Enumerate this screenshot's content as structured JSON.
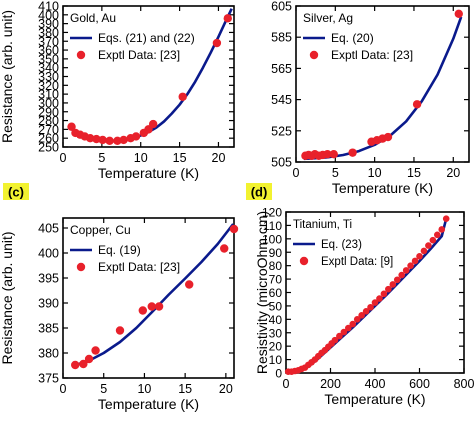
{
  "colors": {
    "curve": "#0a1a8c",
    "points": "#e8212b",
    "tag_bg": "#f2f230",
    "axis": "#000000"
  },
  "chart_data": [
    {
      "type": "scatter",
      "panel_tag": "",
      "title": "Gold, Au",
      "xlabel": "Temperature (K)",
      "ylabel": "Resistance (arb. unit)",
      "xlim": [
        0,
        22
      ],
      "ylim": [
        250,
        410
      ],
      "xticks": [
        0,
        5,
        10,
        15,
        20
      ],
      "yticks": [
        250,
        260,
        270,
        280,
        290,
        300,
        310,
        320,
        330,
        340,
        350,
        360,
        370,
        380,
        390,
        400,
        410
      ],
      "legend": [
        "Eqs. (21) and (22)",
        "Exptl Data: [23]"
      ],
      "legend_position": "top-left",
      "grid": false,
      "series": [
        {
          "name": "Eqs. (21) and (22)",
          "kind": "line",
          "x": [
            1.0,
            2.0,
            3.0,
            4.0,
            5.0,
            6.0,
            7.0,
            8.0,
            9.0,
            10.0,
            11.0,
            12.0,
            13.0,
            14.0,
            15.0,
            16.0,
            17.0,
            18.0,
            19.0,
            20.0,
            21.0,
            21.7
          ],
          "y": [
            271,
            265,
            261,
            259,
            257.5,
            257,
            257,
            258,
            260,
            263,
            267,
            272,
            279,
            288,
            298,
            310,
            324,
            340,
            357,
            375,
            394,
            407
          ]
        },
        {
          "name": "Exptl Data: [23]",
          "kind": "points",
          "x": [
            1.1,
            1.6,
            2.2,
            2.8,
            3.5,
            4.3,
            5.1,
            6.0,
            7.0,
            7.8,
            8.7,
            9.4,
            10.4,
            11.0,
            11.6,
            15.4,
            19.8,
            21.2
          ],
          "y": [
            273,
            266,
            264,
            262,
            260,
            259,
            258,
            257,
            257,
            258,
            260,
            262,
            266,
            270,
            276,
            307,
            368,
            396
          ]
        }
      ]
    },
    {
      "type": "scatter",
      "panel_tag": "",
      "title": "Silver, Ag",
      "xlabel": "Temperature (K)",
      "ylabel": "",
      "xlim": [
        0,
        22
      ],
      "ylim": [
        505,
        605
      ],
      "xticks": [
        0,
        5,
        10,
        15,
        20
      ],
      "yticks": [
        505,
        525,
        545,
        565,
        585,
        605
      ],
      "legend": [
        "Eq. (20)",
        "Exptl Data: [23]"
      ],
      "legend_position": "top-left",
      "grid": false,
      "series": [
        {
          "name": "Eq. (20)",
          "kind": "line",
          "x": [
            1.0,
            2.0,
            4.0,
            6.0,
            8.0,
            10.0,
            12.0,
            14.0,
            16.0,
            18.0,
            20.0,
            21.0
          ],
          "y": [
            507,
            507.3,
            508,
            509.5,
            512,
            516,
            522,
            531,
            544,
            561,
            584,
            598
          ]
        },
        {
          "name": "Exptl Data: [23]",
          "kind": "points",
          "x": [
            1.2,
            1.6,
            2.0,
            2.4,
            2.9,
            3.4,
            4.0,
            4.8,
            7.2,
            9.6,
            10.3,
            11.0,
            11.7,
            15.4,
            20.7
          ],
          "y": [
            509,
            509.5,
            509,
            510,
            509,
            509.5,
            510,
            510,
            511,
            518,
            519,
            520,
            521,
            542,
            600
          ]
        }
      ]
    },
    {
      "type": "scatter",
      "panel_tag": "(c)",
      "title": "Copper, Cu",
      "xlabel": "Temperature (K)",
      "ylabel": "Resistance (arb. unit)",
      "xlim": [
        0,
        21
      ],
      "ylim": [
        375,
        407
      ],
      "xticks": [
        0,
        5,
        10,
        15,
        20
      ],
      "yticks": [
        375,
        380,
        385,
        390,
        395,
        400,
        405
      ],
      "legend": [
        "Eq. (19)",
        "Exptl Data: [23]"
      ],
      "legend_position": "top-left",
      "grid": false,
      "series": [
        {
          "name": "Eq. (19)",
          "kind": "line",
          "x": [
            1.5,
            3.0,
            5.0,
            7.0,
            9.0,
            11.0,
            13.0,
            15.0,
            17.0,
            19.0,
            20.9
          ],
          "y": [
            377.6,
            378.3,
            380.0,
            382.2,
            385.0,
            388.3,
            391.7,
            394.9,
            398.2,
            401.8,
            405.8
          ]
        },
        {
          "name": "Exptl Data: [23]",
          "kind": "points",
          "x": [
            1.5,
            2.5,
            3.2,
            4.0,
            7.0,
            9.8,
            10.9,
            11.8,
            15.5,
            19.8,
            21.0
          ],
          "y": [
            377.6,
            377.8,
            378.8,
            380.5,
            384.5,
            388.5,
            389.3,
            389.3,
            393.7,
            400.9,
            404.8
          ]
        }
      ]
    },
    {
      "type": "scatter",
      "panel_tag": "(d)",
      "title": "Titanium, Ti",
      "xlabel": "Temperature (K)",
      "ylabel": "Resistivity (microOhm.cm)",
      "xlim": [
        0,
        800
      ],
      "ylim": [
        0,
        120
      ],
      "xticks": [
        0,
        200,
        400,
        600,
        800
      ],
      "yticks": [
        0,
        10,
        20,
        30,
        40,
        50,
        60,
        70,
        80,
        90,
        100,
        110,
        120
      ],
      "legend": [
        "Eq. (23)",
        "Exptl Data: [9]"
      ],
      "legend_position": "top-left",
      "grid": false,
      "series": [
        {
          "name": "Eq. (23)",
          "kind": "line",
          "x": [
            0,
            40,
            80,
            110,
            140,
            170,
            200,
            250,
            300,
            350,
            400,
            450,
            500,
            550,
            600,
            650,
            700,
            720
          ],
          "y": [
            1,
            1.5,
            3,
            6,
            10,
            14.5,
            19,
            26.5,
            34,
            42,
            50,
            58,
            66.5,
            75,
            83.5,
            92.5,
            102,
            115
          ]
        },
        {
          "name": "Exptl Data: [9]",
          "kind": "points",
          "x": [
            10,
            25,
            40,
            55,
            70,
            85,
            100,
            115,
            130,
            145,
            160,
            175,
            190,
            205,
            220,
            240,
            260,
            280,
            300,
            320,
            340,
            360,
            380,
            400,
            420,
            440,
            460,
            480,
            500,
            520,
            540,
            560,
            580,
            600,
            620,
            640,
            660,
            680,
            700,
            720
          ],
          "y": [
            1,
            1,
            1.5,
            2,
            3,
            4,
            6,
            8,
            10,
            12.5,
            15,
            17,
            19.5,
            22,
            24.5,
            27.5,
            30.5,
            33.5,
            36.5,
            40,
            43,
            46,
            49,
            52.5,
            55.5,
            59,
            62.5,
            66,
            69.5,
            73,
            76.5,
            80,
            83.5,
            87,
            91,
            95,
            99,
            103,
            107,
            115
          ]
        }
      ]
    }
  ]
}
